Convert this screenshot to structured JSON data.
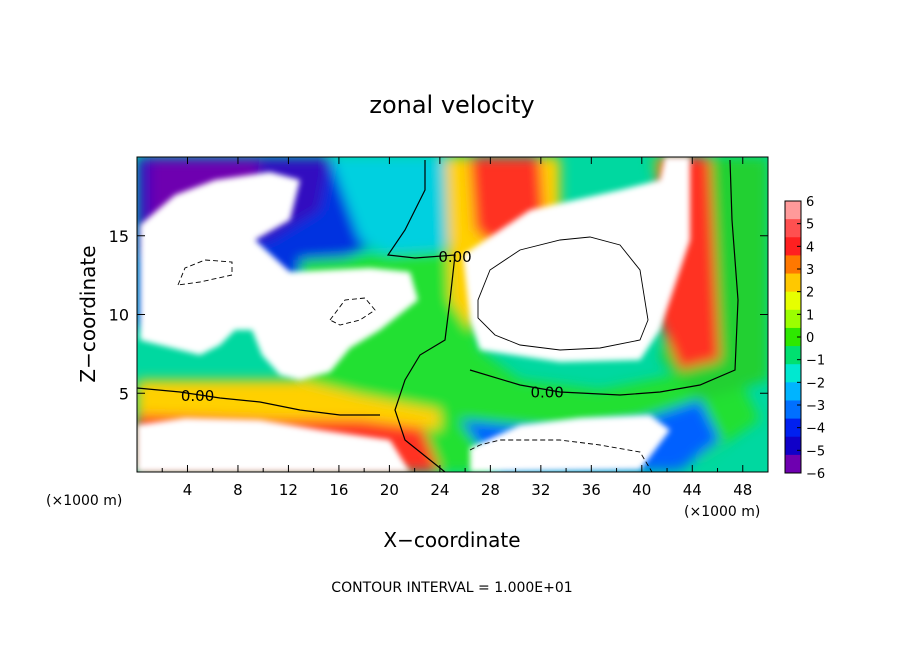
{
  "chart_data": {
    "type": "heatmap",
    "title": "zonal velocity",
    "xlabel": "X−coordinate",
    "ylabel": "Z−coordinate",
    "x_unit_left": "(×1000 m)",
    "x_unit_right": "(×1000 m)",
    "xlim": [
      0,
      50
    ],
    "ylim": [
      0,
      20
    ],
    "x_ticks": [
      4,
      8,
      12,
      16,
      20,
      24,
      28,
      32,
      36,
      40,
      44,
      48
    ],
    "x_tick_labels": [
      "4",
      "8",
      "12",
      "16",
      "20",
      "24",
      "28",
      "32",
      "36",
      "40",
      "44",
      "48"
    ],
    "y_ticks": [
      5,
      10,
      15
    ],
    "y_tick_labels": [
      "5",
      "10",
      "15"
    ],
    "colorbar": {
      "levels": [
        6,
        5,
        4,
        3,
        2,
        1,
        0,
        -1,
        -2,
        -3,
        -4,
        -5,
        -6
      ],
      "labels": [
        "6",
        "5",
        "4",
        "3",
        "2",
        "1",
        "0",
        "−1",
        "−2",
        "−3",
        "−4",
        "−5",
        "−6"
      ],
      "colors": [
        "#ff9a9a",
        "#ff5050",
        "#ff2020",
        "#ff7800",
        "#ffc800",
        "#e6ff00",
        "#9bff00",
        "#2ee800",
        "#00e070",
        "#00e8d0",
        "#00b4ff",
        "#0070ff",
        "#0020f0",
        "#1000c8",
        "#6e00b0"
      ]
    },
    "contour_labels": [
      {
        "text": "0.00",
        "x": 25.2,
        "y": 13.7
      },
      {
        "text": "0.00",
        "x": 4.8,
        "y": 4.9
      },
      {
        "text": "0.00",
        "x": 32.5,
        "y": 5.1
      }
    ],
    "footer": "CONTOUR INTERVAL = 1.000E+01",
    "grid": false
  }
}
